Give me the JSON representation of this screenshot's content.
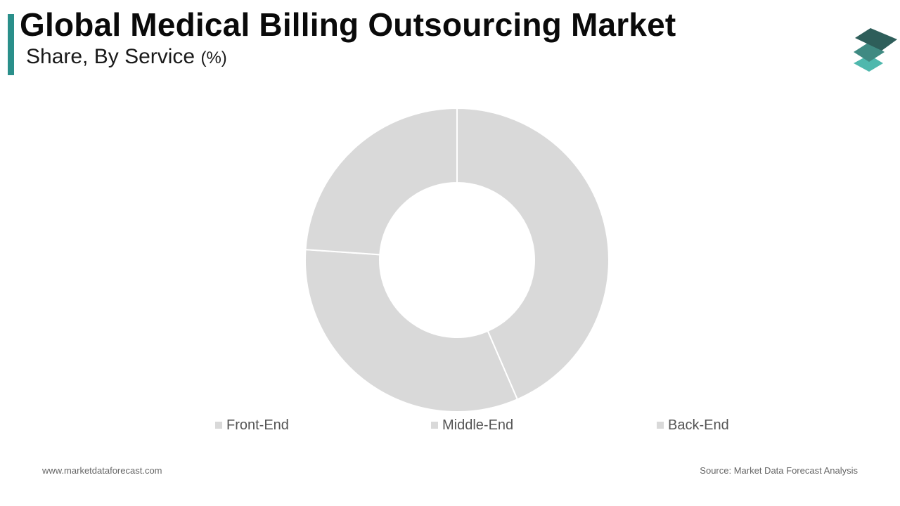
{
  "header": {
    "title": "Global Medical Billing Outsourcing Market",
    "subtitle": "Share, By Service",
    "subtitle_unit": "(%)",
    "accent_color": "#2a8f8a"
  },
  "logo": {
    "icon": "stacked-layers-icon",
    "colors": [
      "#2e5e5a",
      "#3f8a82",
      "#4fb8ad"
    ]
  },
  "chart_data": {
    "type": "pie",
    "donut": true,
    "title": "Global Medical Billing Outsourcing Market",
    "subtitle": "Share, By Service (%)",
    "categories": [
      "Front-End",
      "Middle-End",
      "Back-End"
    ],
    "values": [
      43.5,
      32.6,
      23.9
    ],
    "slice_colors": [
      "#d9d9d9",
      "#d9d9d9",
      "#d9d9d9"
    ],
    "legend_position": "bottom"
  },
  "footer": {
    "left": "www.marketdataforecast.com",
    "right": "Source: Market Data Forecast Analysis"
  }
}
